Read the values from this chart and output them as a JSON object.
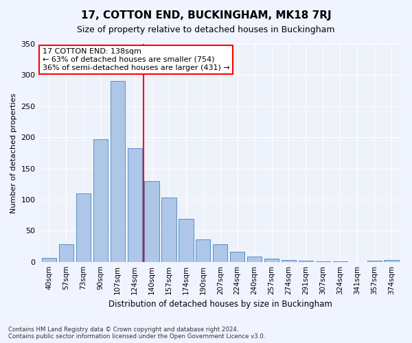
{
  "title": "17, COTTON END, BUCKINGHAM, MK18 7RJ",
  "subtitle": "Size of property relative to detached houses in Buckingham",
  "xlabel": "Distribution of detached houses by size in Buckingham",
  "ylabel": "Number of detached properties",
  "categories": [
    "40sqm",
    "57sqm",
    "73sqm",
    "90sqm",
    "107sqm",
    "124sqm",
    "140sqm",
    "157sqm",
    "174sqm",
    "190sqm",
    "207sqm",
    "224sqm",
    "240sqm",
    "257sqm",
    "274sqm",
    "291sqm",
    "307sqm",
    "324sqm",
    "341sqm",
    "357sqm",
    "374sqm"
  ],
  "values": [
    6,
    28,
    110,
    197,
    290,
    182,
    130,
    103,
    69,
    36,
    28,
    16,
    8,
    5,
    3,
    2,
    1,
    1,
    0,
    2,
    3
  ],
  "bar_color": "#aec6e8",
  "bar_edge_color": "#5a8fc2",
  "vline_x": 5.5,
  "vline_color": "red",
  "annotation_text": "17 COTTON END: 138sqm\n← 63% of detached houses are smaller (754)\n36% of semi-detached houses are larger (431) →",
  "annotation_box_color": "white",
  "annotation_box_edge": "red",
  "ylim": [
    0,
    350
  ],
  "yticks": [
    0,
    50,
    100,
    150,
    200,
    250,
    300,
    350
  ],
  "footer": "Contains HM Land Registry data © Crown copyright and database right 2024.\nContains public sector information licensed under the Open Government Licence v3.0.",
  "bg_color": "#f0f4ff",
  "plot_bg_color": "#eef2fa"
}
